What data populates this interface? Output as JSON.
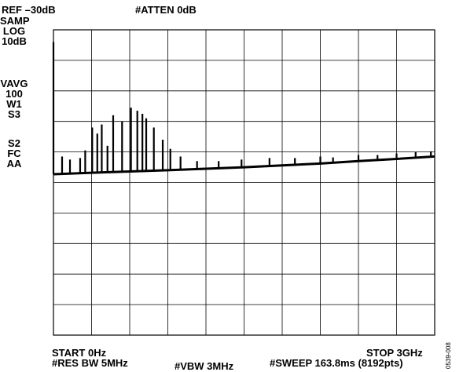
{
  "header": {
    "ref_label": "REF –30dB",
    "atten_label": "#ATTEN 0dB"
  },
  "side_labels": {
    "group1": [
      "SAMP",
      "LOG",
      "10dB"
    ],
    "group2": [
      "VAVG",
      "100",
      "W1",
      "S3"
    ],
    "group3": [
      "S2",
      "FC",
      "AA"
    ]
  },
  "footer": {
    "start_label": "START 0Hz",
    "stop_label": "STOP 3GHz",
    "res_bw_label": "#RES BW 5MHz",
    "vbw_label": "#VBW 3MHz",
    "sweep_label": "#SWEEP 163.8ms (8192pts)"
  },
  "figure_id": "0539-008",
  "chart_data": {
    "type": "line",
    "title": "",
    "xlabel": "",
    "ylabel": "",
    "x_unit": "GHz",
    "y_unit": "dB",
    "xlim": [
      0,
      3
    ],
    "ylim": [
      -130,
      -30
    ],
    "grid": true,
    "grid_divisions": {
      "x": 10,
      "y": 10
    },
    "series": [
      {
        "x": [
          0.0,
          0.3,
          0.6,
          0.9,
          1.2,
          1.5,
          1.8,
          2.1,
          2.4,
          2.7,
          3.0
        ],
        "y": [
          -77.3,
          -76.8,
          -76.4,
          -76.0,
          -75.5,
          -75.0,
          -74.4,
          -73.8,
          -73.0,
          -72.3,
          -71.5
        ]
      }
    ],
    "spikes": [
      {
        "x": 0.0,
        "y": -34
      },
      {
        "x": 0.068,
        "y": -71.5
      },
      {
        "x": 0.13,
        "y": -72.5
      },
      {
        "x": 0.21,
        "y": -72.0
      },
      {
        "x": 0.25,
        "y": -69.5
      },
      {
        "x": 0.305,
        "y": -62.0
      },
      {
        "x": 0.345,
        "y": -64.0
      },
      {
        "x": 0.38,
        "y": -61.0
      },
      {
        "x": 0.425,
        "y": -68.0
      },
      {
        "x": 0.47,
        "y": -58.0
      },
      {
        "x": 0.54,
        "y": -60.0
      },
      {
        "x": 0.61,
        "y": -55.5
      },
      {
        "x": 0.66,
        "y": -56.5
      },
      {
        "x": 0.7,
        "y": -57.5
      },
      {
        "x": 0.73,
        "y": -59.0
      },
      {
        "x": 0.79,
        "y": -62.0
      },
      {
        "x": 0.86,
        "y": -66.0
      },
      {
        "x": 0.92,
        "y": -69.0
      },
      {
        "x": 1.0,
        "y": -71.5
      },
      {
        "x": 1.13,
        "y": -73.0
      },
      {
        "x": 1.3,
        "y": -73.0
      },
      {
        "x": 1.48,
        "y": -72.5
      },
      {
        "x": 1.7,
        "y": -72.0
      },
      {
        "x": 1.9,
        "y": -72.0
      },
      {
        "x": 2.1,
        "y": -71.5
      },
      {
        "x": 2.2,
        "y": -71.8
      },
      {
        "x": 2.4,
        "y": -71.0
      },
      {
        "x": 2.55,
        "y": -71.0
      },
      {
        "x": 2.7,
        "y": -70.5
      },
      {
        "x": 2.85,
        "y": -70.0
      },
      {
        "x": 2.97,
        "y": -69.8
      }
    ],
    "colors": {
      "trace": "#000000",
      "grid": "#000000",
      "background": "#ffffff"
    }
  }
}
